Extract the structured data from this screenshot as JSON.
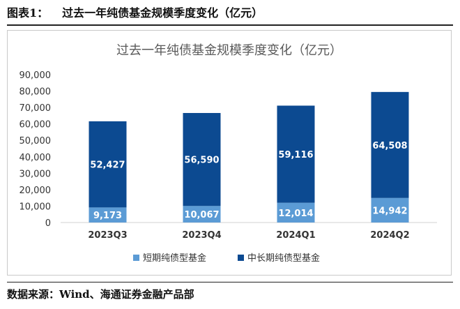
{
  "figure": {
    "label": "图表1：",
    "title": "过去一年纯债基金规模季度变化（亿元）",
    "source": "数据来源：Wind、海通证券金融产品部"
  },
  "chart_data": {
    "type": "bar",
    "stacked": true,
    "title": "过去一年纯债基金规模季度变化（亿元）",
    "xlabel": "",
    "ylabel": "",
    "categories": [
      "2023Q3",
      "2023Q4",
      "2024Q1",
      "2024Q2"
    ],
    "series": [
      {
        "name": "短期纯债型基金",
        "color": "#5b9bd5",
        "values": [
          9173,
          10067,
          12014,
          14942
        ]
      },
      {
        "name": "中长期纯债型基金",
        "color": "#0c4a91",
        "values": [
          52427,
          56590,
          59116,
          64508
        ]
      }
    ],
    "ylim": [
      0,
      90000
    ],
    "yticks": [
      "0",
      "10,000",
      "20,000",
      "30,000",
      "40,000",
      "50,000",
      "60,000",
      "70,000",
      "80,000",
      "90,000"
    ],
    "data_labels": [
      [
        "9,173",
        "10,067",
        "12,014",
        "14,942"
      ],
      [
        "52,427",
        "56,590",
        "59,116",
        "64,508"
      ]
    ],
    "grid": false,
    "legend": "bottom"
  }
}
